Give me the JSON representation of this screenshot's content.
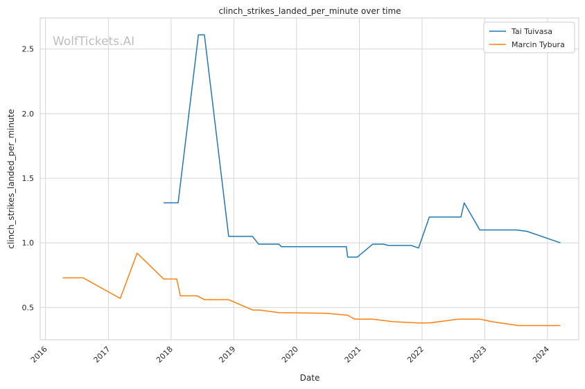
{
  "chart_data": {
    "type": "line",
    "title": "clinch_strikes_landed_per_minute over time",
    "xlabel": "Date",
    "ylabel": "clinch_strikes_landed_per_minute",
    "watermark": "WolfTickets.AI",
    "xlim": [
      "2015-12-01",
      "2024-07-01"
    ],
    "ylim": [
      0.25,
      2.74
    ],
    "x_ticks": [
      "2016",
      "2017",
      "2018",
      "2019",
      "2020",
      "2021",
      "2022",
      "2023",
      "2024"
    ],
    "y_ticks": [
      "0.5",
      "1.0",
      "1.5",
      "2.0",
      "2.5"
    ],
    "grid": true,
    "legend_position": "top-right",
    "colors": {
      "Tai Tuivasa": "#1f77b4",
      "Marcin Tybura": "#ff7f0e"
    },
    "series": [
      {
        "name": "Tai Tuivasa",
        "points": [
          [
            "2017-11-19",
            1.31
          ],
          [
            "2018-02-11",
            1.31
          ],
          [
            "2018-06-09",
            2.61
          ],
          [
            "2018-07-14",
            2.61
          ],
          [
            "2018-12-02",
            1.05
          ],
          [
            "2019-04-20",
            1.05
          ],
          [
            "2019-05-25",
            0.99
          ],
          [
            "2019-09-21",
            0.99
          ],
          [
            "2019-10-05",
            0.97
          ],
          [
            "2020-10-17",
            0.97
          ],
          [
            "2020-10-25",
            0.89
          ],
          [
            "2020-12-20",
            0.89
          ],
          [
            "2021-03-20",
            0.99
          ],
          [
            "2021-05-22",
            0.99
          ],
          [
            "2021-06-19",
            0.98
          ],
          [
            "2021-10-30",
            0.98
          ],
          [
            "2021-12-11",
            0.96
          ],
          [
            "2022-02-12",
            1.2
          ],
          [
            "2022-08-15",
            1.2
          ],
          [
            "2022-09-03",
            1.31
          ],
          [
            "2022-12-03",
            1.1
          ],
          [
            "2023-07-01",
            1.1
          ],
          [
            "2023-09-02",
            1.09
          ],
          [
            "2024-03-16",
            1.0
          ]
        ]
      },
      {
        "name": "Marcin Tybura",
        "points": [
          [
            "2016-04-10",
            0.73
          ],
          [
            "2016-08-06",
            0.73
          ],
          [
            "2017-03-11",
            0.57
          ],
          [
            "2017-06-17",
            0.92
          ],
          [
            "2017-11-19",
            0.72
          ],
          [
            "2018-02-03",
            0.72
          ],
          [
            "2018-02-24",
            0.59
          ],
          [
            "2018-06-01",
            0.59
          ],
          [
            "2018-07-14",
            0.56
          ],
          [
            "2018-12-02",
            0.56
          ],
          [
            "2019-04-20",
            0.48
          ],
          [
            "2019-06-01",
            0.48
          ],
          [
            "2019-09-21",
            0.46
          ],
          [
            "2020-06-20",
            0.455
          ],
          [
            "2020-10-24",
            0.44
          ],
          [
            "2020-12-05",
            0.41
          ],
          [
            "2021-03-20",
            0.41
          ],
          [
            "2021-07-14",
            0.39
          ],
          [
            "2021-12-11",
            0.38
          ],
          [
            "2022-02-12",
            0.38
          ],
          [
            "2022-07-30",
            0.41
          ],
          [
            "2022-12-03",
            0.41
          ],
          [
            "2023-02-11",
            0.39
          ],
          [
            "2023-07-15",
            0.36
          ],
          [
            "2024-03-16",
            0.36
          ]
        ]
      }
    ]
  }
}
